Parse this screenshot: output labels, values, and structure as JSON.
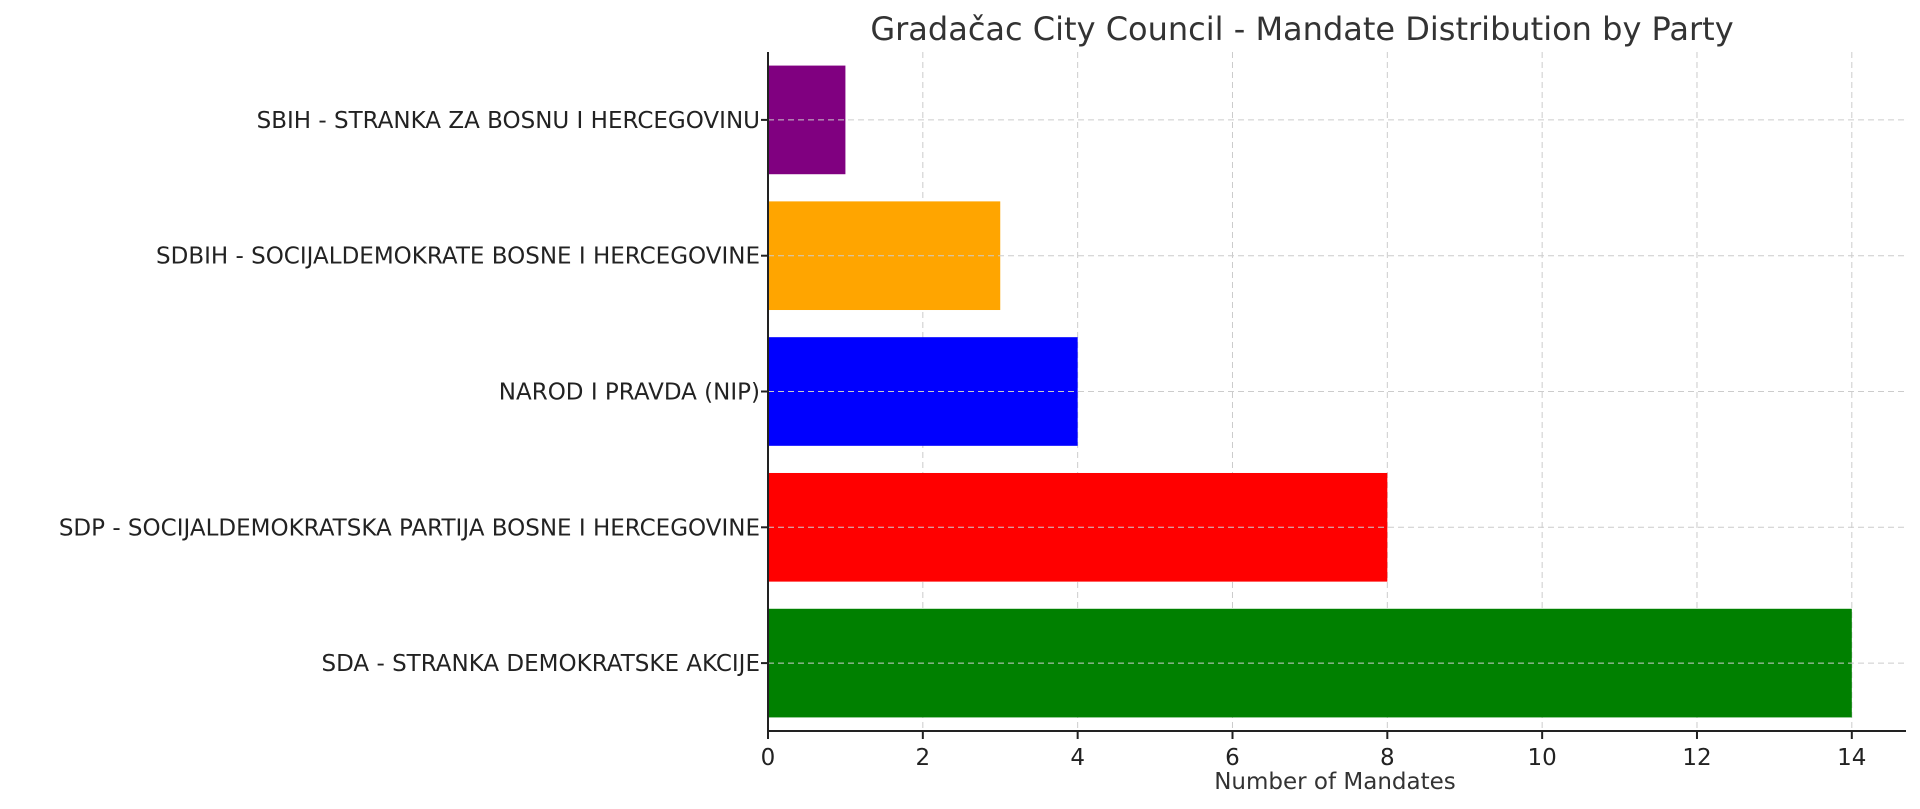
{
  "chart_data": {
    "type": "bar",
    "orientation": "horizontal",
    "title": "Gradačac City Council - Mandate Distribution by Party",
    "xlabel": "Number of Mandates",
    "ylabel": "",
    "xlim": [
      0,
      14.7
    ],
    "xticks": [
      0,
      2,
      4,
      6,
      8,
      10,
      12,
      14
    ],
    "grid": true,
    "categories": [
      "SDA - STRANKA DEMOKRATSKE AKCIJE",
      "SDP - SOCIJALDEMOKRATSKA PARTIJA BOSNE I HERCEGOVINE",
      "NAROD I PRAVDA (NIP)",
      "SDBIH - SOCIJALDEMOKRATE BOSNE I HERCEGOVINE",
      "SBIH - STRANKA ZA BOSNU I HERCEGOVINU"
    ],
    "values": [
      14,
      8,
      4,
      3,
      1
    ],
    "colors": [
      "#008000",
      "#ff0000",
      "#0000ff",
      "#ffa500",
      "#800080"
    ]
  }
}
